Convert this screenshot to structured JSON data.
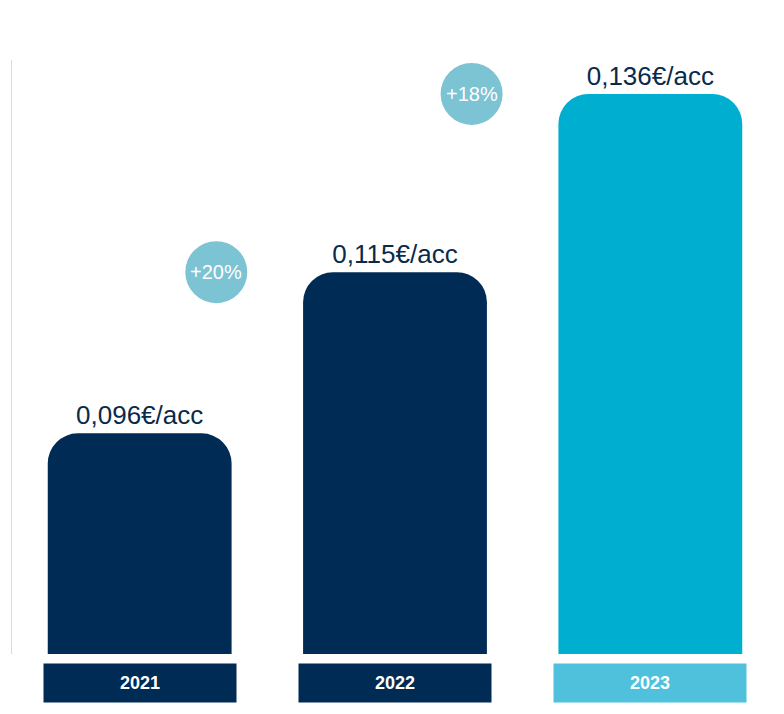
{
  "chart_data": {
    "type": "bar",
    "categories": [
      "2021",
      "2022",
      "2023"
    ],
    "values": [
      0.096,
      0.115,
      0.136
    ],
    "value_labels": [
      "0,096€/acc",
      "0,115€/acc",
      "0,136€/acc"
    ],
    "colors": [
      "#002b55",
      "#002b55",
      "#00aed0"
    ],
    "data_labels": true,
    "tick_labels": "x",
    "grid": false,
    "ylim": [
      0.07,
      0.14
    ],
    "annotations": [
      "+20%",
      "+18%"
    ]
  }
}
